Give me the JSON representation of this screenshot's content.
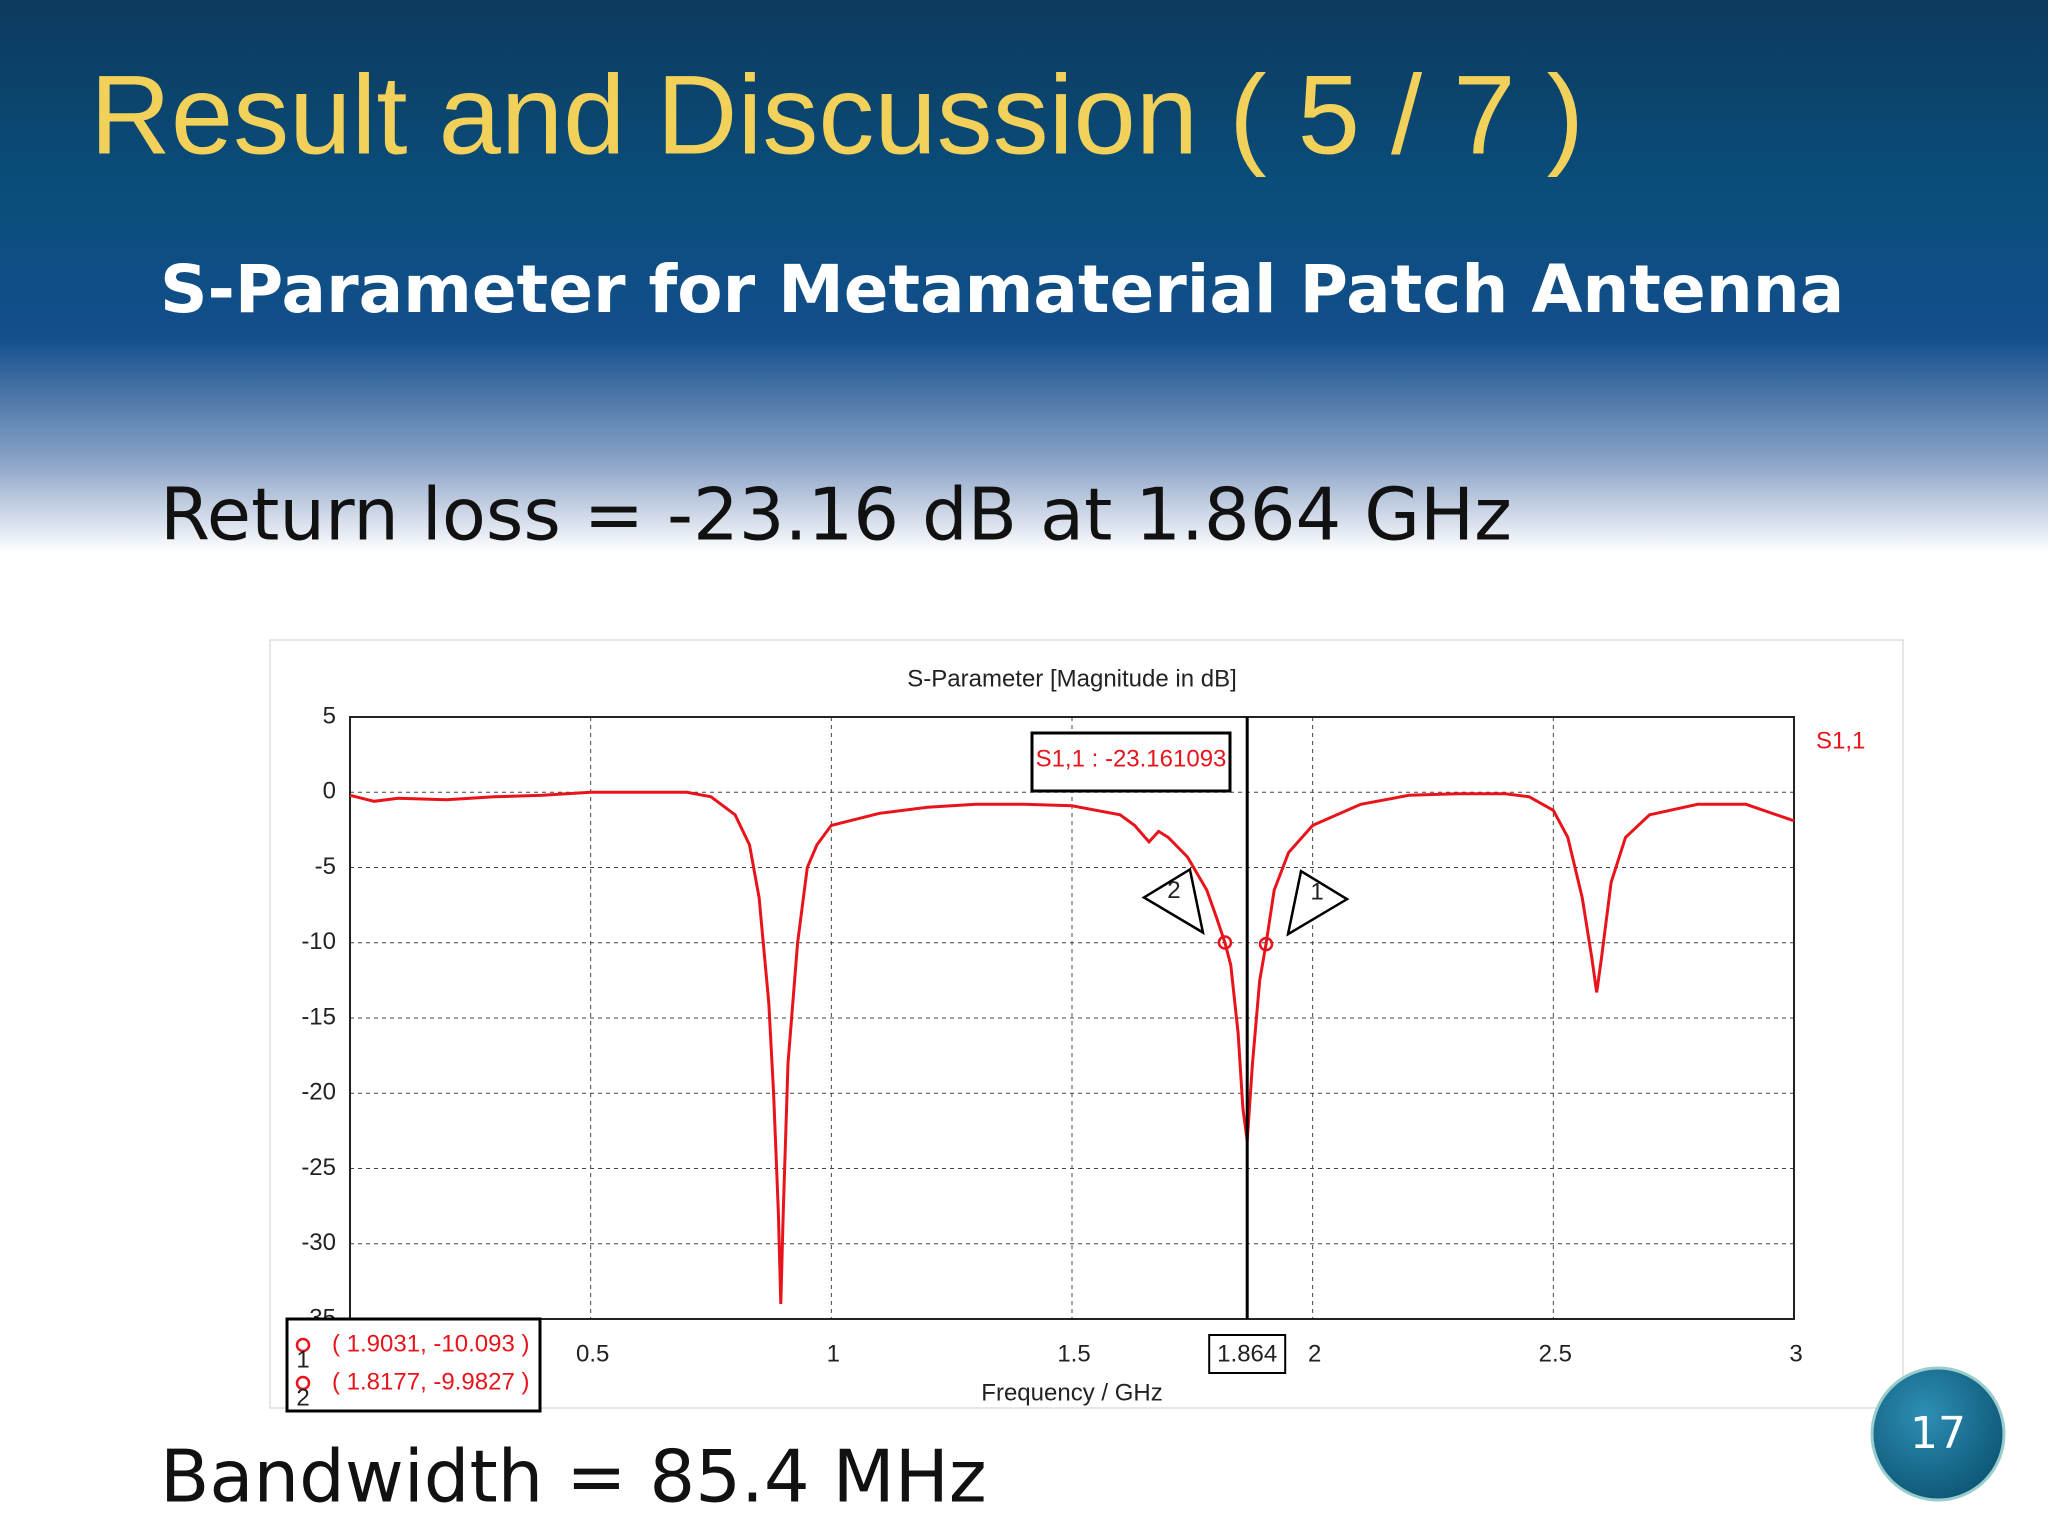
{
  "slide": {
    "title": "Result and Discussion ( 5 / 7 )",
    "subtitle": "S-Parameter for Metamaterial Patch Antenna",
    "return_loss": "Return loss = -23.16 dB at 1.864 GHz",
    "bandwidth": "Bandwidth = 85.4 MHz",
    "page_number": 17
  },
  "chart_data": {
    "type": "line",
    "title": "S-Parameter [Magnitude in dB]",
    "x_label": "Frequency / GHz",
    "x": [
      0,
      0.05,
      0.1,
      0.2,
      0.3,
      0.4,
      0.5,
      0.6,
      0.7,
      0.75,
      0.8,
      0.83,
      0.85,
      0.87,
      0.88,
      0.89,
      0.895,
      0.9,
      0.91,
      0.93,
      0.95,
      0.97,
      1.0,
      1.1,
      1.2,
      1.3,
      1.4,
      1.5,
      1.55,
      1.6,
      1.63,
      1.66,
      1.68,
      1.7,
      1.74,
      1.78,
      1.8,
      1.8177,
      1.83,
      1.845,
      1.855,
      1.864,
      1.875,
      1.89,
      1.9031,
      1.92,
      1.95,
      2.0,
      2.1,
      2.2,
      2.3,
      2.4,
      2.45,
      2.5,
      2.53,
      2.56,
      2.58,
      2.59,
      2.6,
      2.62,
      2.65,
      2.7,
      2.8,
      2.9,
      3.0
    ],
    "series": [
      {
        "name": "S1,1",
        "color": "#e8141b",
        "values": [
          -0.2,
          -0.6,
          -0.4,
          -0.5,
          -0.3,
          -0.2,
          0,
          0,
          0,
          -0.3,
          -1.5,
          -3.5,
          -7,
          -14,
          -20,
          -28,
          -34,
          -28,
          -18,
          -10,
          -5,
          -3.5,
          -2.2,
          -1.4,
          -1.0,
          -0.8,
          -0.8,
          -0.9,
          -1.2,
          -1.5,
          -2.2,
          -3.3,
          -2.6,
          -3,
          -4.3,
          -6.5,
          -8.3,
          -9.9827,
          -11.5,
          -16,
          -21,
          -23.161093,
          -18,
          -12.5,
          -10.093,
          -6.5,
          -4,
          -2.2,
          -0.8,
          -0.2,
          -0.1,
          -0.1,
          -0.3,
          -1.2,
          -3,
          -7,
          -11,
          -13.3,
          -11,
          -6,
          -3,
          -1.5,
          -0.8,
          -0.8,
          -1.9
        ]
      }
    ],
    "xlim": [
      0,
      3
    ],
    "xticks": [
      0.5,
      1,
      1.5,
      2,
      2.5,
      3
    ],
    "ylim": [
      -35,
      5
    ],
    "yticks": [
      5,
      0,
      -5,
      -10,
      -15,
      -20,
      -25,
      -30,
      -35
    ],
    "grid": true,
    "cursor": {
      "x": 1.864
    },
    "annotation": "S1,1 : -23.161093",
    "markers": [
      {
        "label": "1",
        "x": 1.9031,
        "y": -10.093,
        "text": "( 1.9031, -10.093 )"
      },
      {
        "label": "2",
        "x": 1.8177,
        "y": -9.9827,
        "text": "( 1.8177, -9.9827 )"
      }
    ]
  }
}
